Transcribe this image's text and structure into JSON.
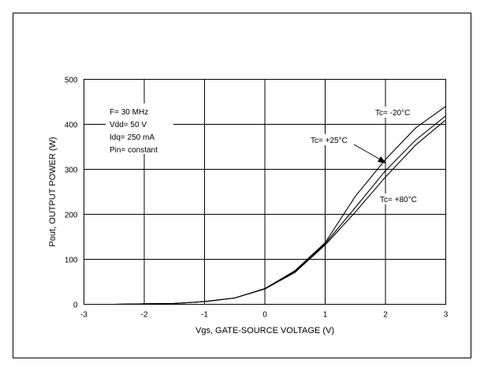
{
  "chart_data": {
    "type": "line",
    "title": "",
    "xlabel": "Vgs, GATE-SOURCE VOLTAGE (V)",
    "ylabel": "Pout, OUTPUT POWER (W)",
    "xlim": [
      -3,
      3
    ],
    "ylim": [
      0,
      500
    ],
    "xticks": [
      -3,
      -2,
      -1,
      0,
      1,
      2,
      3
    ],
    "yticks": [
      0,
      100,
      200,
      300,
      400,
      500
    ],
    "grid": true,
    "conditions": [
      "F= 30 MHz",
      "Vdd= 50 V",
      "Idq= 250 mA",
      "Pin= constant"
    ],
    "series": [
      {
        "name": "Tc= -20°C",
        "x": [
          -2.5,
          -2,
          -1.5,
          -1,
          -0.5,
          0,
          0.5,
          1,
          1.5,
          2,
          2.5,
          3
        ],
        "y": [
          0,
          1,
          2,
          6,
          14,
          35,
          75,
          137,
          240,
          322,
          392,
          440
        ]
      },
      {
        "name": "Tc= +25°C",
        "x": [
          -2.5,
          -2,
          -1.5,
          -1,
          -0.5,
          0,
          0.5,
          1,
          1.5,
          2,
          2.5,
          3
        ],
        "y": [
          0,
          1,
          2,
          6,
          14,
          35,
          73,
          135,
          215,
          297,
          365,
          419
        ]
      },
      {
        "name": "Tc= +80°C",
        "x": [
          -2.5,
          -2,
          -1.5,
          -1,
          -0.5,
          0,
          0.5,
          1,
          1.5,
          2,
          2.5,
          3
        ],
        "y": [
          0,
          1,
          2,
          6,
          14,
          34,
          71,
          132,
          205,
          283,
          354,
          410
        ]
      }
    ]
  }
}
